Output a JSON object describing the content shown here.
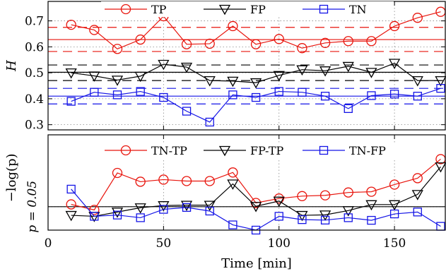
{
  "chart_data": [
    {
      "type": "line",
      "ylabel": "H",
      "xlim": [
        0,
        172
      ],
      "ylim": [
        0.28,
        0.775
      ],
      "yticks": [
        0.3,
        0.4,
        0.5,
        0.6,
        0.7
      ],
      "ytick_labels": [
        "0.3",
        "0.4",
        "0.5",
        "0.6",
        "0.7"
      ],
      "grid": true,
      "legend_position": "top",
      "x": [
        10,
        20,
        30,
        40,
        50,
        60,
        70,
        80,
        90,
        100,
        110,
        120,
        130,
        140,
        150,
        160,
        170
      ],
      "series": [
        {
          "name": "TP",
          "color": "#e8140c",
          "marker": "circle",
          "values": [
            0.685,
            0.665,
            0.592,
            0.628,
            0.718,
            0.61,
            0.612,
            0.68,
            0.61,
            0.63,
            0.595,
            0.615,
            0.622,
            0.622,
            0.68,
            0.712,
            0.735
          ],
          "mean": 0.628,
          "band": [
            0.582,
            0.675
          ]
        },
        {
          "name": "FP",
          "color": "#000000",
          "marker": "triangle-down",
          "values": [
            0.5,
            0.488,
            0.472,
            0.487,
            0.533,
            0.522,
            0.47,
            0.468,
            0.462,
            0.49,
            0.512,
            0.508,
            0.525,
            0.502,
            0.537,
            0.47,
            0.47
          ],
          "mean": 0.502,
          "band": [
            0.47,
            0.53
          ]
        },
        {
          "name": "TN",
          "color": "#1414e6",
          "marker": "square",
          "values": [
            0.39,
            0.425,
            0.415,
            0.428,
            0.405,
            0.352,
            0.31,
            0.415,
            0.405,
            0.428,
            0.425,
            0.41,
            0.362,
            0.412,
            0.418,
            0.41,
            0.44
          ],
          "mean": 0.41,
          "band": [
            0.38,
            0.44
          ]
        }
      ]
    },
    {
      "type": "line",
      "ylabel": "−log(p)",
      "ytick_labels": [
        "p = 0.05"
      ],
      "xlabel": "Time [min]",
      "xlim": [
        0,
        172
      ],
      "ylim": [
        0,
        1
      ],
      "xticks": [
        0,
        50,
        100,
        150
      ],
      "xtick_labels": [
        "0",
        "50",
        "100",
        "150"
      ],
      "threshold": 0.246,
      "grid": true,
      "legend_position": "top",
      "x": [
        10,
        20,
        30,
        40,
        50,
        60,
        70,
        80,
        90,
        100,
        110,
        120,
        130,
        140,
        150,
        160,
        170
      ],
      "series": [
        {
          "name": "TN-TP",
          "color": "#e8140c",
          "marker": "circle",
          "values": [
            0.27,
            0.212,
            0.6,
            0.508,
            0.53,
            0.515,
            0.515,
            0.605,
            0.285,
            0.332,
            0.357,
            0.365,
            0.395,
            0.403,
            0.478,
            0.545,
            0.745
          ]
        },
        {
          "name": "FP-TP",
          "color": "#000000",
          "marker": "triangle-down",
          "values": [
            0.155,
            0.145,
            0.19,
            0.235,
            0.258,
            0.262,
            0.262,
            0.485,
            0.25,
            0.305,
            0.155,
            0.16,
            0.205,
            0.268,
            0.268,
            0.375,
            0.665
          ]
        },
        {
          "name": "TN-FP",
          "color": "#1414e6",
          "marker": "square",
          "values": [
            0.43,
            0.145,
            0.158,
            0.13,
            0.218,
            0.238,
            0.2,
            0.055,
            0,
            0.145,
            0.11,
            0.105,
            0.13,
            0.103,
            0.17,
            0.19,
            0.04
          ]
        }
      ]
    }
  ]
}
